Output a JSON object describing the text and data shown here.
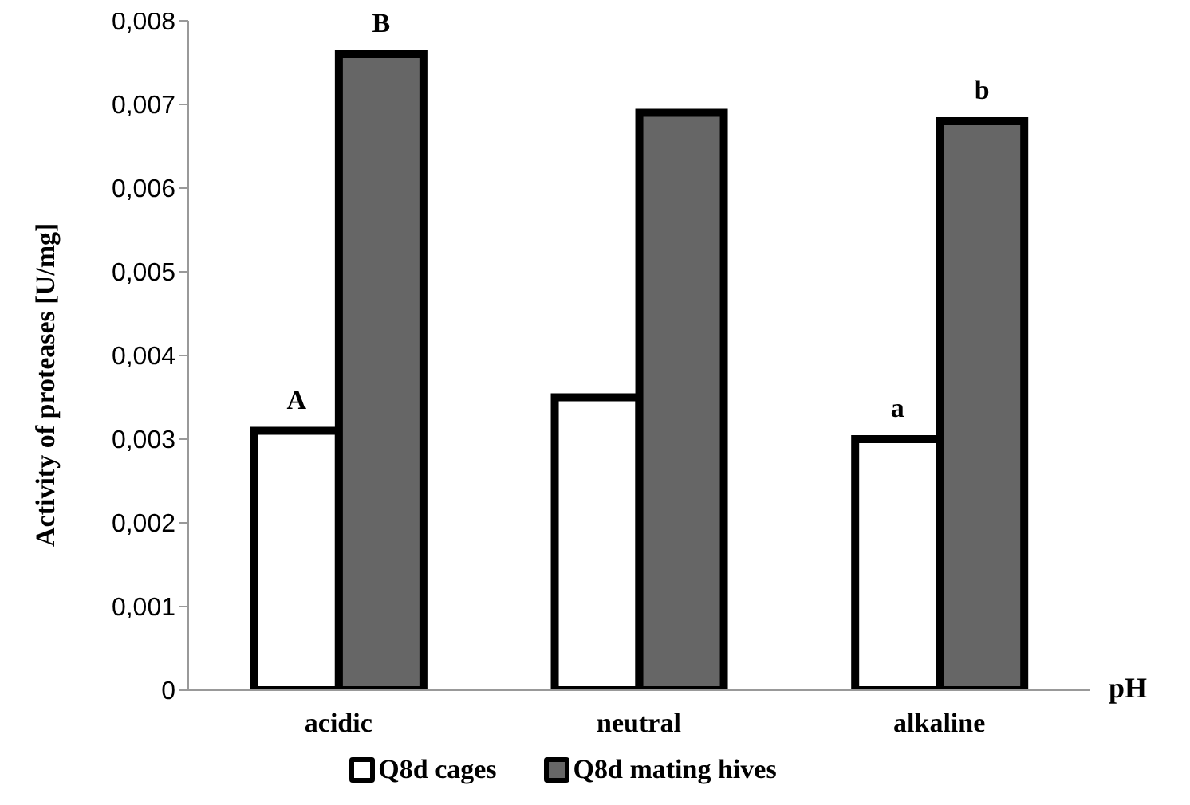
{
  "chart_data": {
    "type": "bar",
    "xlabel": "pH",
    "ylabel": "Activity of proteases [U/mg]",
    "categories": [
      "acidic",
      "neutral",
      "alkaline"
    ],
    "series": [
      {
        "name": "Q8d cages",
        "color": "#ffffff",
        "values": [
          0.0031,
          0.0035,
          0.003
        ]
      },
      {
        "name": "Q8d mating hives",
        "color": "#666666",
        "values": [
          0.0076,
          0.0069,
          0.0068
        ]
      }
    ],
    "ylim": [
      0,
      0.008
    ],
    "yticks": [
      {
        "value": 0,
        "label": "0"
      },
      {
        "value": 0.001,
        "label": "0,001"
      },
      {
        "value": 0.002,
        "label": "0,002"
      },
      {
        "value": 0.003,
        "label": "0,003"
      },
      {
        "value": 0.004,
        "label": "0,004"
      },
      {
        "value": 0.005,
        "label": "0,005"
      },
      {
        "value": 0.006,
        "label": "0,006"
      },
      {
        "value": 0.007,
        "label": "0,007"
      },
      {
        "value": 0.008,
        "label": "0,008"
      }
    ],
    "annotations": [
      {
        "text": "A",
        "x": "acidic",
        "y": 0.0031
      },
      {
        "text": "B",
        "x": "acidic",
        "y": 0.0076
      },
      {
        "text": "a",
        "x": "alkaline",
        "y": 0.003
      },
      {
        "text": "b",
        "x": "alkaline",
        "y": 0.0068
      }
    ],
    "grid": false,
    "legend": "bottom"
  }
}
